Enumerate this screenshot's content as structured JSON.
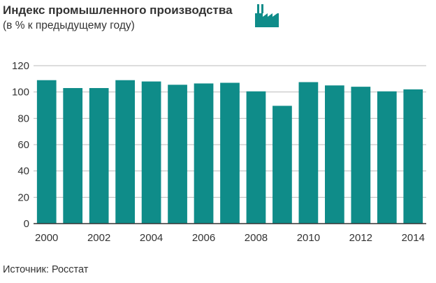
{
  "header": {
    "title": "Индекс промышленного производства",
    "subtitle": "(в % к предыдущему году)"
  },
  "icon": "factory-icon",
  "footer": {
    "source": "Источник: Росстат"
  },
  "colors": {
    "bar": "#0f8c89",
    "grid": "#bbbbbb",
    "axis": "#333333"
  },
  "chart_data": {
    "type": "bar",
    "categories": [
      "2000",
      "2001",
      "2002",
      "2003",
      "2004",
      "2005",
      "2006",
      "2007",
      "2008",
      "2009",
      "2010",
      "2011",
      "2012",
      "2013",
      "2014"
    ],
    "values": [
      109,
      103,
      103,
      109,
      108,
      105.5,
      106.5,
      107,
      100.5,
      89.5,
      107.5,
      105,
      104,
      100.5,
      102
    ],
    "ylim": [
      0,
      120
    ],
    "yticks": [
      0,
      20,
      40,
      60,
      80,
      100,
      120
    ],
    "xtick_labels": [
      "2000",
      "2002",
      "2004",
      "2006",
      "2008",
      "2010",
      "2012",
      "2014"
    ],
    "grid": true
  }
}
